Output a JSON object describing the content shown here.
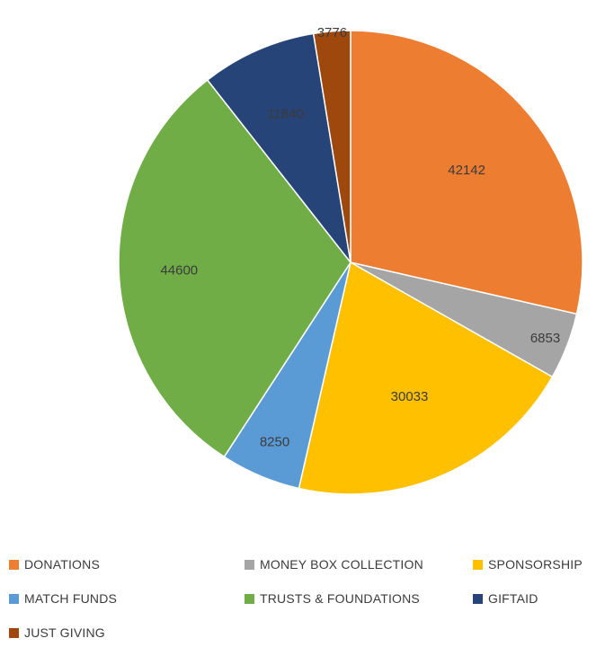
{
  "chart_data": {
    "type": "pie",
    "categories": [
      "DONATIONS",
      "MONEY BOX COLLECTION",
      "SPONSORSHIP",
      "MATCH FUNDS",
      "TRUSTS & FOUNDATIONS",
      "GIFTAID",
      "JUST GIVING"
    ],
    "values": [
      42142,
      6853,
      30033,
      8250,
      44600,
      11840,
      3776
    ],
    "data_labels": [
      "42142",
      "6853",
      "30033",
      "8250",
      "44600",
      "11840",
      "3776"
    ],
    "colors": [
      "#ed7d31",
      "#a5a5a5",
      "#ffc000",
      "#5b9bd5",
      "#70ad47",
      "#264478",
      "#9e480e"
    ],
    "legend_position": "bottom",
    "title": ""
  }
}
